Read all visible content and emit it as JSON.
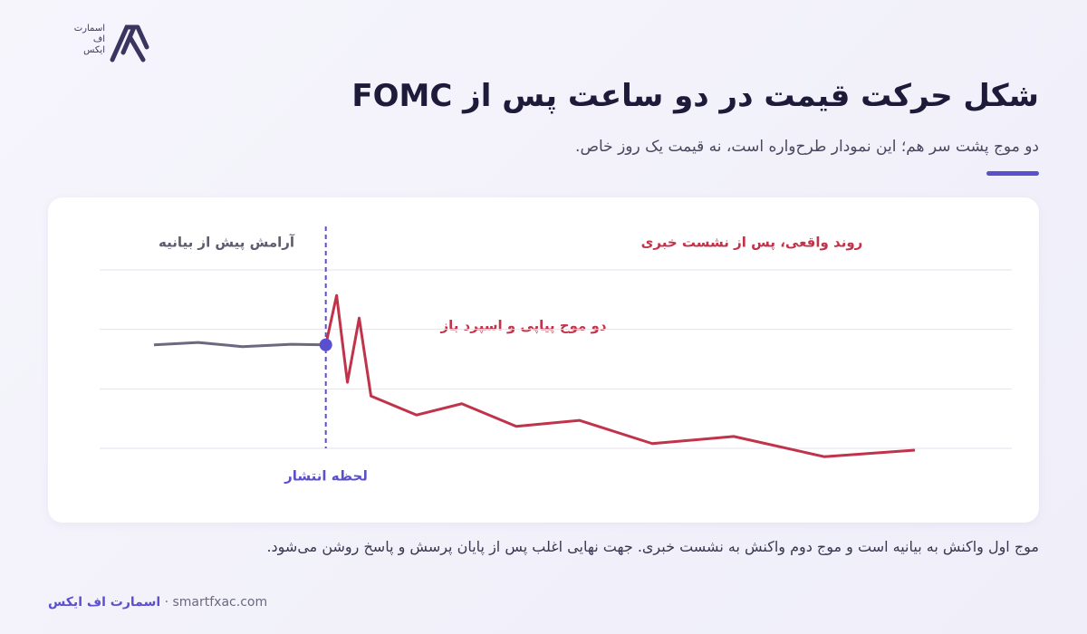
{
  "brand": {
    "logo_lines": [
      "اسمارت",
      "اف",
      "ایکس"
    ]
  },
  "header": {
    "title": "شکل حرکت قیمت در دو ساعت پس از FOMC",
    "subtitle": "دو موج پشت سر هم؛ این نمودار طرح‌واره است، نه قیمت یک روز خاص."
  },
  "chart_data": {
    "type": "line",
    "annotations": {
      "pre": "آرامش پیش از بیانیه",
      "post": "روند واقعی، پس از نشست خبری",
      "waves": "دو موج پیاپی و اسپرد باز",
      "event": "لحظه انتشار"
    },
    "event_x": 0,
    "xlim": [
      -35,
      120
    ],
    "ylim": [
      -0.5,
      3.3
    ],
    "gridlines": [
      0,
      1,
      2,
      3
    ],
    "series": [
      {
        "color": "#6b6880",
        "x": [
          -35,
          -26,
          -17,
          -7,
          0
        ],
        "values": [
          1.74,
          1.78,
          1.71,
          1.75,
          1.74
        ]
      },
      {
        "color": "#c0334a",
        "x": [
          0,
          2.2,
          4.4,
          6.8,
          9.2,
          18.5,
          27.7,
          38.8,
          51.7,
          66.5,
          83.1,
          101.5,
          120
        ],
        "values": [
          1.74,
          2.57,
          1.11,
          2.19,
          0.88,
          0.56,
          0.75,
          0.37,
          0.47,
          0.08,
          0.2,
          -0.14,
          -0.03
        ]
      }
    ],
    "event_color": "#5a4fcf"
  },
  "caption": "موج اول واکنش به بیانیه است و موج دوم واکنش به نشست خبری. جهت نهایی اغلب پس از پایان پرسش و پاسخ روشن می‌شود.",
  "footer": {
    "brand": "اسمارت اف ایکس",
    "url": "smartfxac.com"
  }
}
